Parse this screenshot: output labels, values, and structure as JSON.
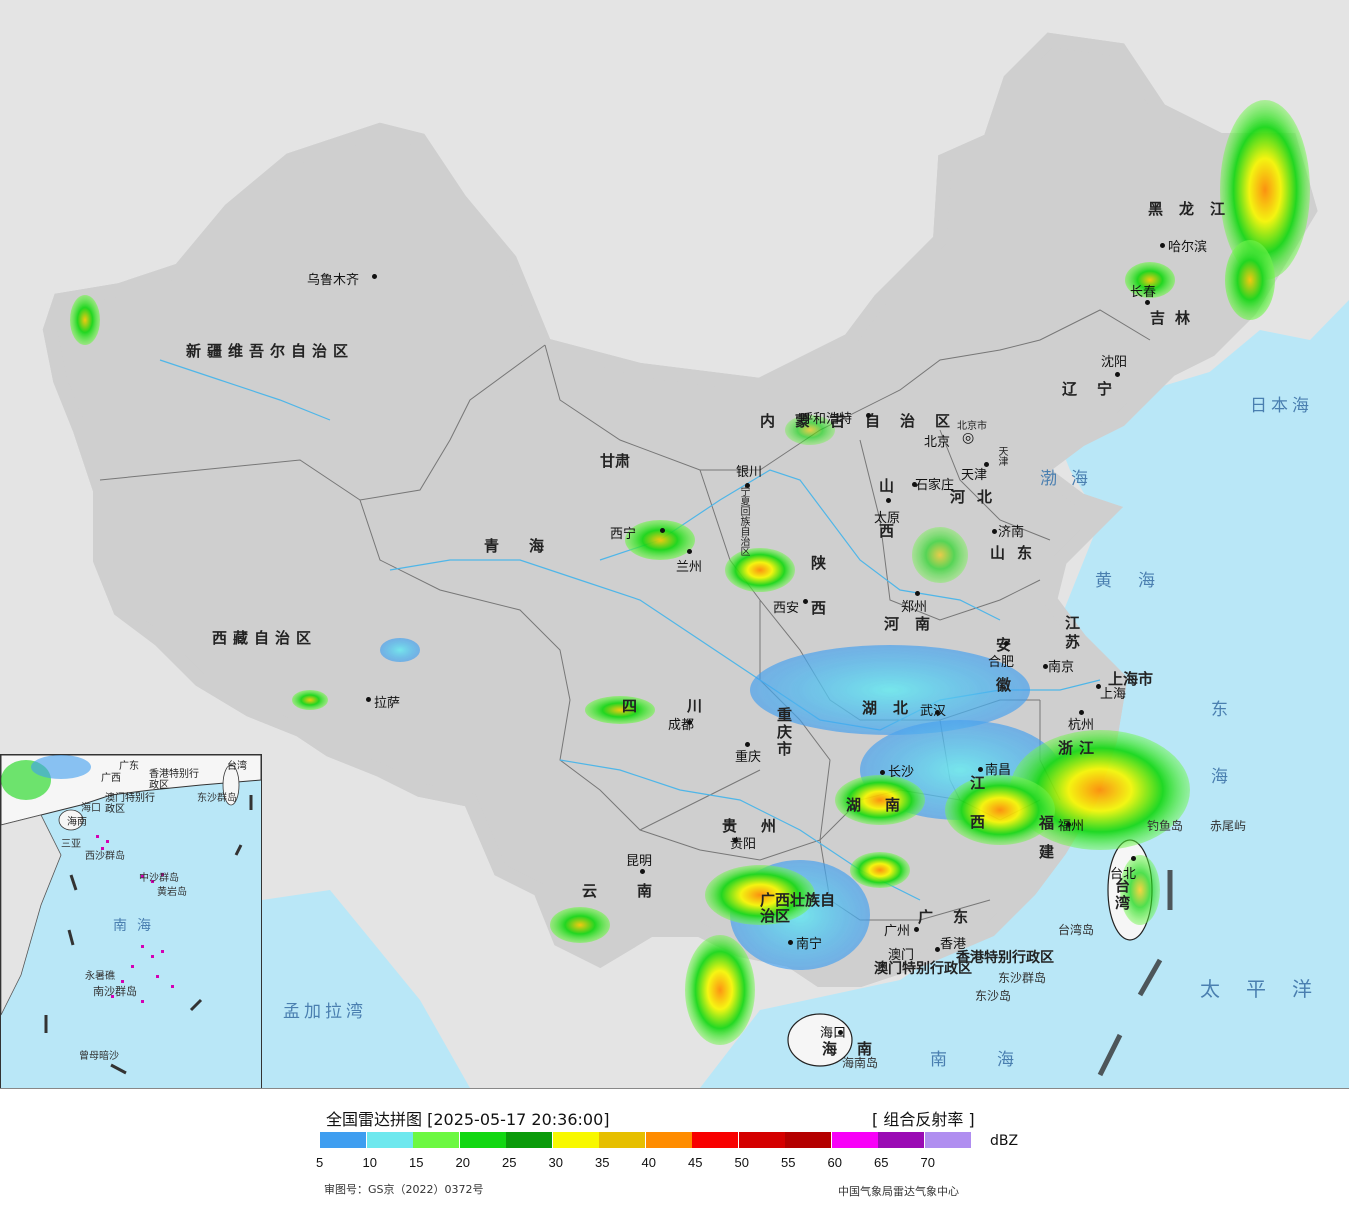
{
  "title": "全国雷达拼图 [2025-05-17 20:36:00]",
  "product": "[ 组合反射率 ]",
  "unit": "dBZ",
  "approval": "审图号：GS京（2022）0372号",
  "agency": "中国气象局雷达气象中心",
  "legend": {
    "colors": [
      "#3f9ef0",
      "#6ee8ee",
      "#6cf842",
      "#12d712",
      "#0a9a0a",
      "#f8f800",
      "#e6bf00",
      "#ff8c00",
      "#f80000",
      "#d40000",
      "#b40000",
      "#f800f8",
      "#9a0ab4",
      "#b08ef0"
    ],
    "ticks": [
      "5",
      "10",
      "15",
      "20",
      "25",
      "30",
      "35",
      "40",
      "45",
      "50",
      "55",
      "60",
      "65",
      "70"
    ]
  },
  "provinces": [
    "新疆维吾尔自治区",
    "西藏自治区",
    "青海",
    "甘肃",
    "内蒙古自治区",
    "黑龙江",
    "吉林",
    "辽宁",
    "河北",
    "山西",
    "山东",
    "陕西",
    "河南",
    "四川",
    "重庆市",
    "湖北",
    "安徽",
    "江苏",
    "上海市",
    "浙江",
    "江西",
    "湖南",
    "贵州",
    "云南",
    "广西壮族自治区",
    "广东",
    "福建",
    "台湾",
    "海南",
    "宁夏回族自治区",
    "香港特别行政区",
    "澳门特别行政区",
    "北京市",
    "天津"
  ],
  "cities": [
    "乌鲁木齐",
    "拉萨",
    "西宁",
    "兰州",
    "银川",
    "呼和浩特",
    "北京",
    "天津",
    "石家庄",
    "太原",
    "济南",
    "郑州",
    "西安",
    "成都",
    "重庆",
    "武汉",
    "合肥",
    "南京",
    "上海",
    "杭州",
    "南昌",
    "长沙",
    "贵阳",
    "昆明",
    "南宁",
    "广州",
    "香港",
    "澳门",
    "福州",
    "台北",
    "哈尔滨",
    "长春",
    "沈阳",
    "海口"
  ],
  "seas": [
    "日本海",
    "渤海",
    "黄海",
    "东海",
    "太平洋",
    "南海",
    "孟加拉湾"
  ],
  "islands": [
    "钓鱼岛",
    "赤尾屿",
    "台湾岛",
    "东沙群岛",
    "海南岛",
    "东沙岛"
  ],
  "inset_labels": [
    "广东",
    "台湾",
    "广西",
    "海南",
    "香港特别行政区",
    "澳门特别行政区",
    "东沙群岛",
    "西沙群岛",
    "中沙群岛",
    "黄岩岛",
    "南海",
    "南沙群岛",
    "曾母暗沙",
    "永暑礁",
    "海口",
    "三亚"
  ]
}
